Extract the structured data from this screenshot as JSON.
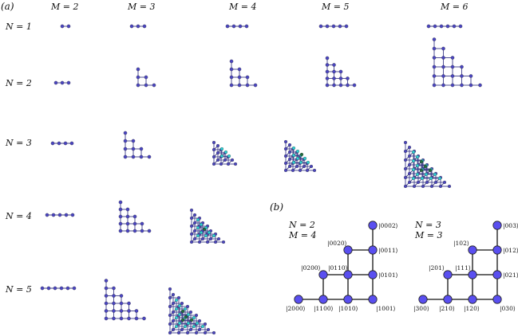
{
  "panel_a_label": "(a)",
  "panel_b_label": "(b)",
  "column_headers": [
    "M = 2",
    "M = 3",
    "M = 4",
    "M = 5",
    "M = 6"
  ],
  "row_headers": [
    "N = 1",
    "N = 2",
    "N = 3",
    "N = 4",
    "N = 5"
  ],
  "colors": {
    "node_dark": "#4a45c0",
    "node_cyan": "#2fd3d8",
    "node_green": "#1f6f3e",
    "edge": "#3f3f8a",
    "edge_b": "#555555",
    "node_b_fill": "#5a4ff0"
  },
  "panel_b": {
    "left": {
      "label_n": "N = 2",
      "label_m": "M = 4",
      "kets": [
        "|0002⟩",
        "|0020⟩",
        "|0011⟩",
        "|0200⟩",
        "|0110⟩",
        "|0101⟩",
        "|2000⟩",
        "|1100⟩",
        "|1010⟩",
        "|1001⟩"
      ]
    },
    "right": {
      "label_n": "N = 3",
      "label_m": "M = 3",
      "kets": [
        "|003⟩",
        "|102⟩",
        "|012⟩",
        "|201⟩",
        "|111⟩",
        "|021⟩",
        "|300⟩",
        "|210⟩",
        "|120⟩",
        "|030⟩"
      ]
    }
  }
}
